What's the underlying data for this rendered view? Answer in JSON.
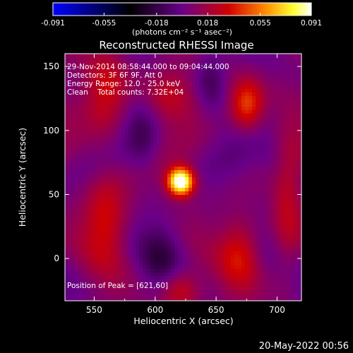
{
  "chart_data": {
    "type": "heatmap",
    "title": "Reconstructed RHESSI Image",
    "xlabel": "Heliocentric X (arcsec)",
    "ylabel": "Heliocentric Y (arcsec)",
    "xlim": [
      526,
      720
    ],
    "ylim": [
      -33,
      160
    ],
    "xticks": [
      550,
      600,
      650,
      700
    ],
    "yticks": [
      0,
      50,
      100,
      150
    ],
    "colorbar": {
      "ticks": [
        -0.091,
        -0.055,
        -0.018,
        0.018,
        0.055,
        0.091
      ],
      "tick_labels": [
        "-0.091",
        "-0.055",
        "-0.018",
        "0.018",
        "0.055",
        "0.091"
      ],
      "unit_label": "(photons cm⁻² s⁻¹ asec⁻²)",
      "range": [
        -0.091,
        0.091
      ],
      "colormap": [
        "#0000ff",
        "#000000",
        "#5b0080",
        "#c80000",
        "#ff8000",
        "#ffff40",
        "#ffffff"
      ]
    },
    "annotations": [
      "29-Nov-2014 08:58:44.000 to 09:04:44.000",
      "Detectors: 3F 6F 9F, Att 0",
      "Energy Range: 12.0 - 25.0 keV",
      "Clean    Total counts: 7.32E+04"
    ],
    "peak_label": "Position of Peak = [621,60]",
    "peak": {
      "x": 621,
      "y": 60,
      "value": 0.091
    }
  },
  "footer": {
    "timestamp": "20-May-2022 00:56"
  }
}
